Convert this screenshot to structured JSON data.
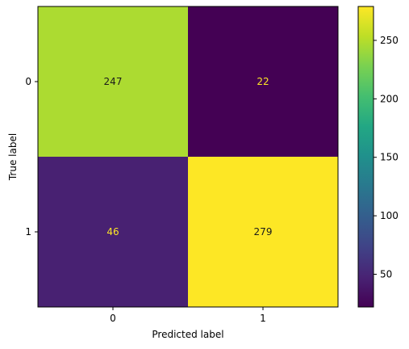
{
  "chart_data": {
    "type": "heatmap",
    "title": "",
    "xlabel": "Predicted label",
    "ylabel": "True label",
    "x_categories": [
      "0",
      "1"
    ],
    "y_categories": [
      "0",
      "1"
    ],
    "values": [
      [
        247,
        22
      ],
      [
        46,
        279
      ]
    ],
    "colormap": "viridis",
    "colorbar": {
      "range": [
        22,
        279
      ],
      "ticks": [
        50,
        100,
        150,
        200,
        250
      ],
      "tick_labels": [
        "50",
        "100",
        "150",
        "200",
        "250"
      ]
    },
    "text_colors": {
      "dark": "#1b1b1b",
      "light": "#fde725"
    },
    "grid": false,
    "legend": "colorbar-right"
  }
}
